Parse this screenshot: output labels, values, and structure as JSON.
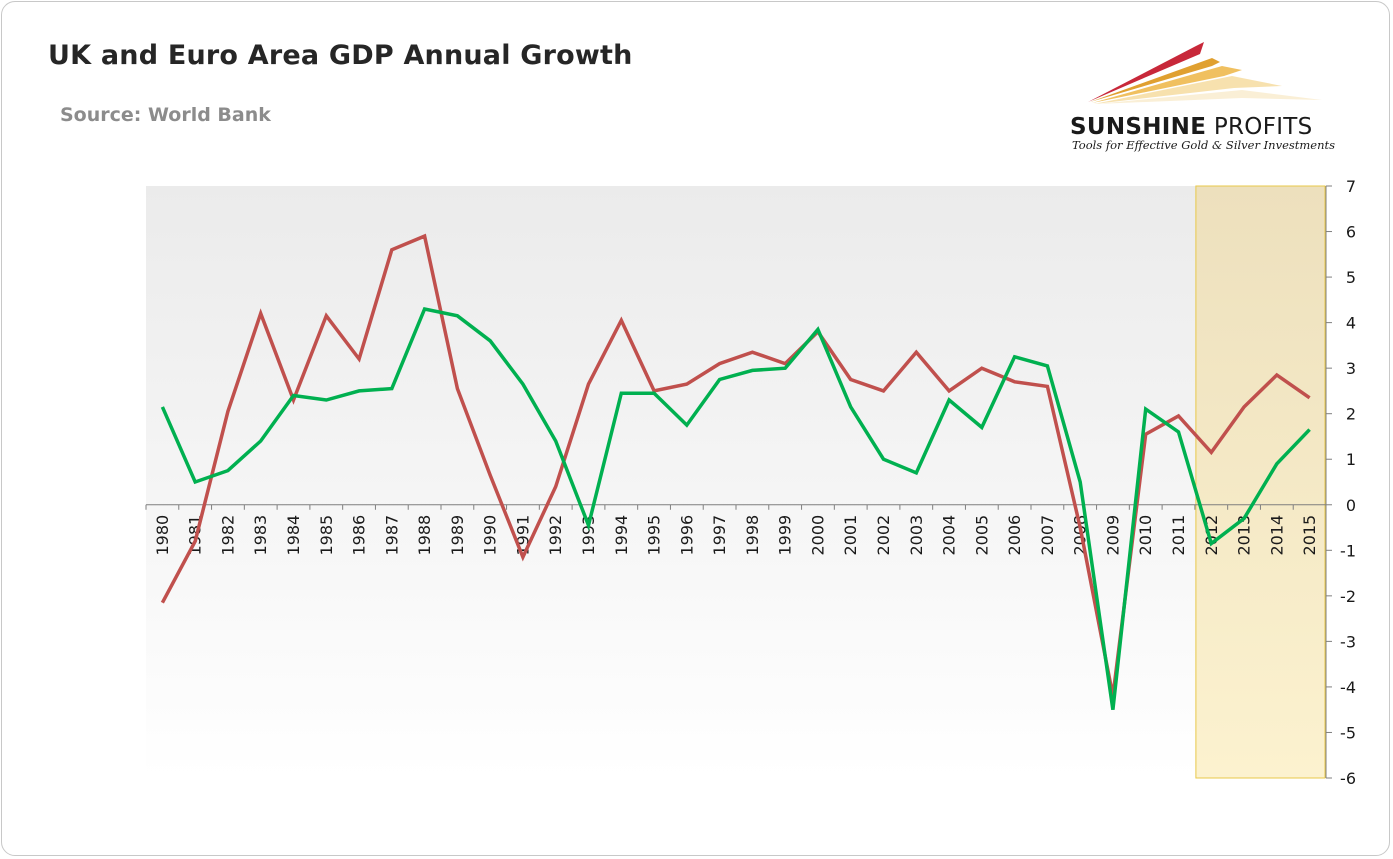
{
  "header": {
    "title": "UK and Euro Area GDP Annual Growth",
    "source": "Source: World Bank"
  },
  "logo": {
    "name_bold": "SUNSHINE",
    "name_regular": " PROFITS",
    "tagline": "Tools for Effective Gold & Silver Investments"
  },
  "colors": {
    "uk": "#c0504d",
    "euro_area": "#00b050",
    "highlight_fill": "#f5e6b8",
    "highlight_border": "#e8c84a"
  },
  "chart_data": {
    "type": "line",
    "x": [
      "1980",
      "1981",
      "1982",
      "1983",
      "1984",
      "1985",
      "1986",
      "1987",
      "1988",
      "1989",
      "1990",
      "1991",
      "1992",
      "1993",
      "1994",
      "1995",
      "1996",
      "1997",
      "1998",
      "1999",
      "2000",
      "2001",
      "2002",
      "2003",
      "2004",
      "2005",
      "2006",
      "2007",
      "2008",
      "2009",
      "2010",
      "2011",
      "2012",
      "2013",
      "2014",
      "2015"
    ],
    "series": [
      {
        "key": "uk",
        "values": [
          -2.15,
          -0.8,
          2.05,
          4.2,
          2.3,
          4.15,
          3.2,
          5.6,
          5.9,
          2.55,
          0.65,
          -1.15,
          0.4,
          2.65,
          4.05,
          2.5,
          2.65,
          3.1,
          3.35,
          3.1,
          3.8,
          2.75,
          2.5,
          3.35,
          2.5,
          3.0,
          2.7,
          2.6,
          -0.5,
          -4.2,
          1.55,
          1.95,
          1.15,
          2.15,
          2.85,
          2.35
        ]
      },
      {
        "key": "euro_area",
        "values": [
          2.15,
          0.5,
          0.75,
          1.4,
          2.4,
          2.3,
          2.5,
          2.55,
          4.3,
          4.15,
          3.6,
          2.65,
          1.4,
          -0.45,
          2.45,
          2.45,
          1.75,
          2.75,
          2.95,
          3.0,
          3.85,
          2.15,
          1.0,
          0.7,
          2.3,
          1.7,
          3.25,
          3.05,
          0.5,
          -4.5,
          2.1,
          1.6,
          -0.85,
          -0.3,
          0.9,
          1.65
        ]
      }
    ],
    "ylim": [
      -6,
      7
    ],
    "yticks": [
      -6,
      -5,
      -4,
      -3,
      -2,
      -1,
      0,
      1,
      2,
      3,
      4,
      5,
      6,
      7
    ],
    "y_axis_side": "right",
    "highlight_range": [
      "2012",
      "2015"
    ],
    "grid": false,
    "legend": "none"
  }
}
